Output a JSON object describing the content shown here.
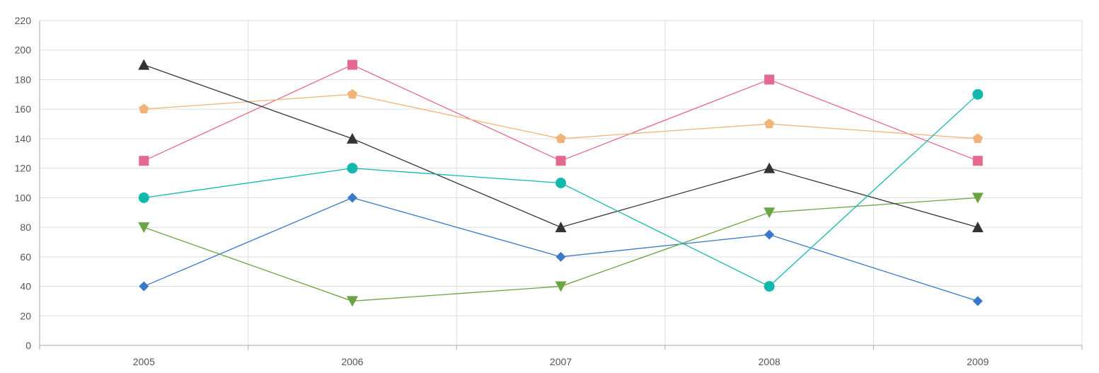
{
  "chart_data": {
    "type": "line",
    "x": [
      "2005",
      "2006",
      "2007",
      "2008",
      "2009"
    ],
    "ylim": [
      0,
      220
    ],
    "yticks": [
      0,
      20,
      40,
      60,
      80,
      100,
      120,
      140,
      160,
      180,
      200,
      220
    ],
    "grid": true,
    "legend": "none",
    "title": "",
    "xlabel": "",
    "ylabel": "",
    "series": [
      {
        "values": [
          40,
          100,
          60,
          75,
          30
        ],
        "color": "#3a78c9",
        "marker": "diamond"
      },
      {
        "values": [
          125,
          190,
          125,
          180,
          125
        ],
        "color": "#e5688f",
        "marker": "square"
      },
      {
        "values": [
          80,
          30,
          40,
          90,
          100
        ],
        "color": "#6aa444",
        "marker": "triangle-down"
      },
      {
        "values": [
          160,
          170,
          140,
          150,
          140
        ],
        "color": "#f2b37a",
        "marker": "pentagon"
      },
      {
        "values": [
          190,
          140,
          80,
          120,
          80
        ],
        "color": "#333333",
        "marker": "triangle-up"
      },
      {
        "values": [
          100,
          120,
          110,
          40,
          170
        ],
        "color": "#11b8ae",
        "marker": "circle"
      }
    ]
  }
}
